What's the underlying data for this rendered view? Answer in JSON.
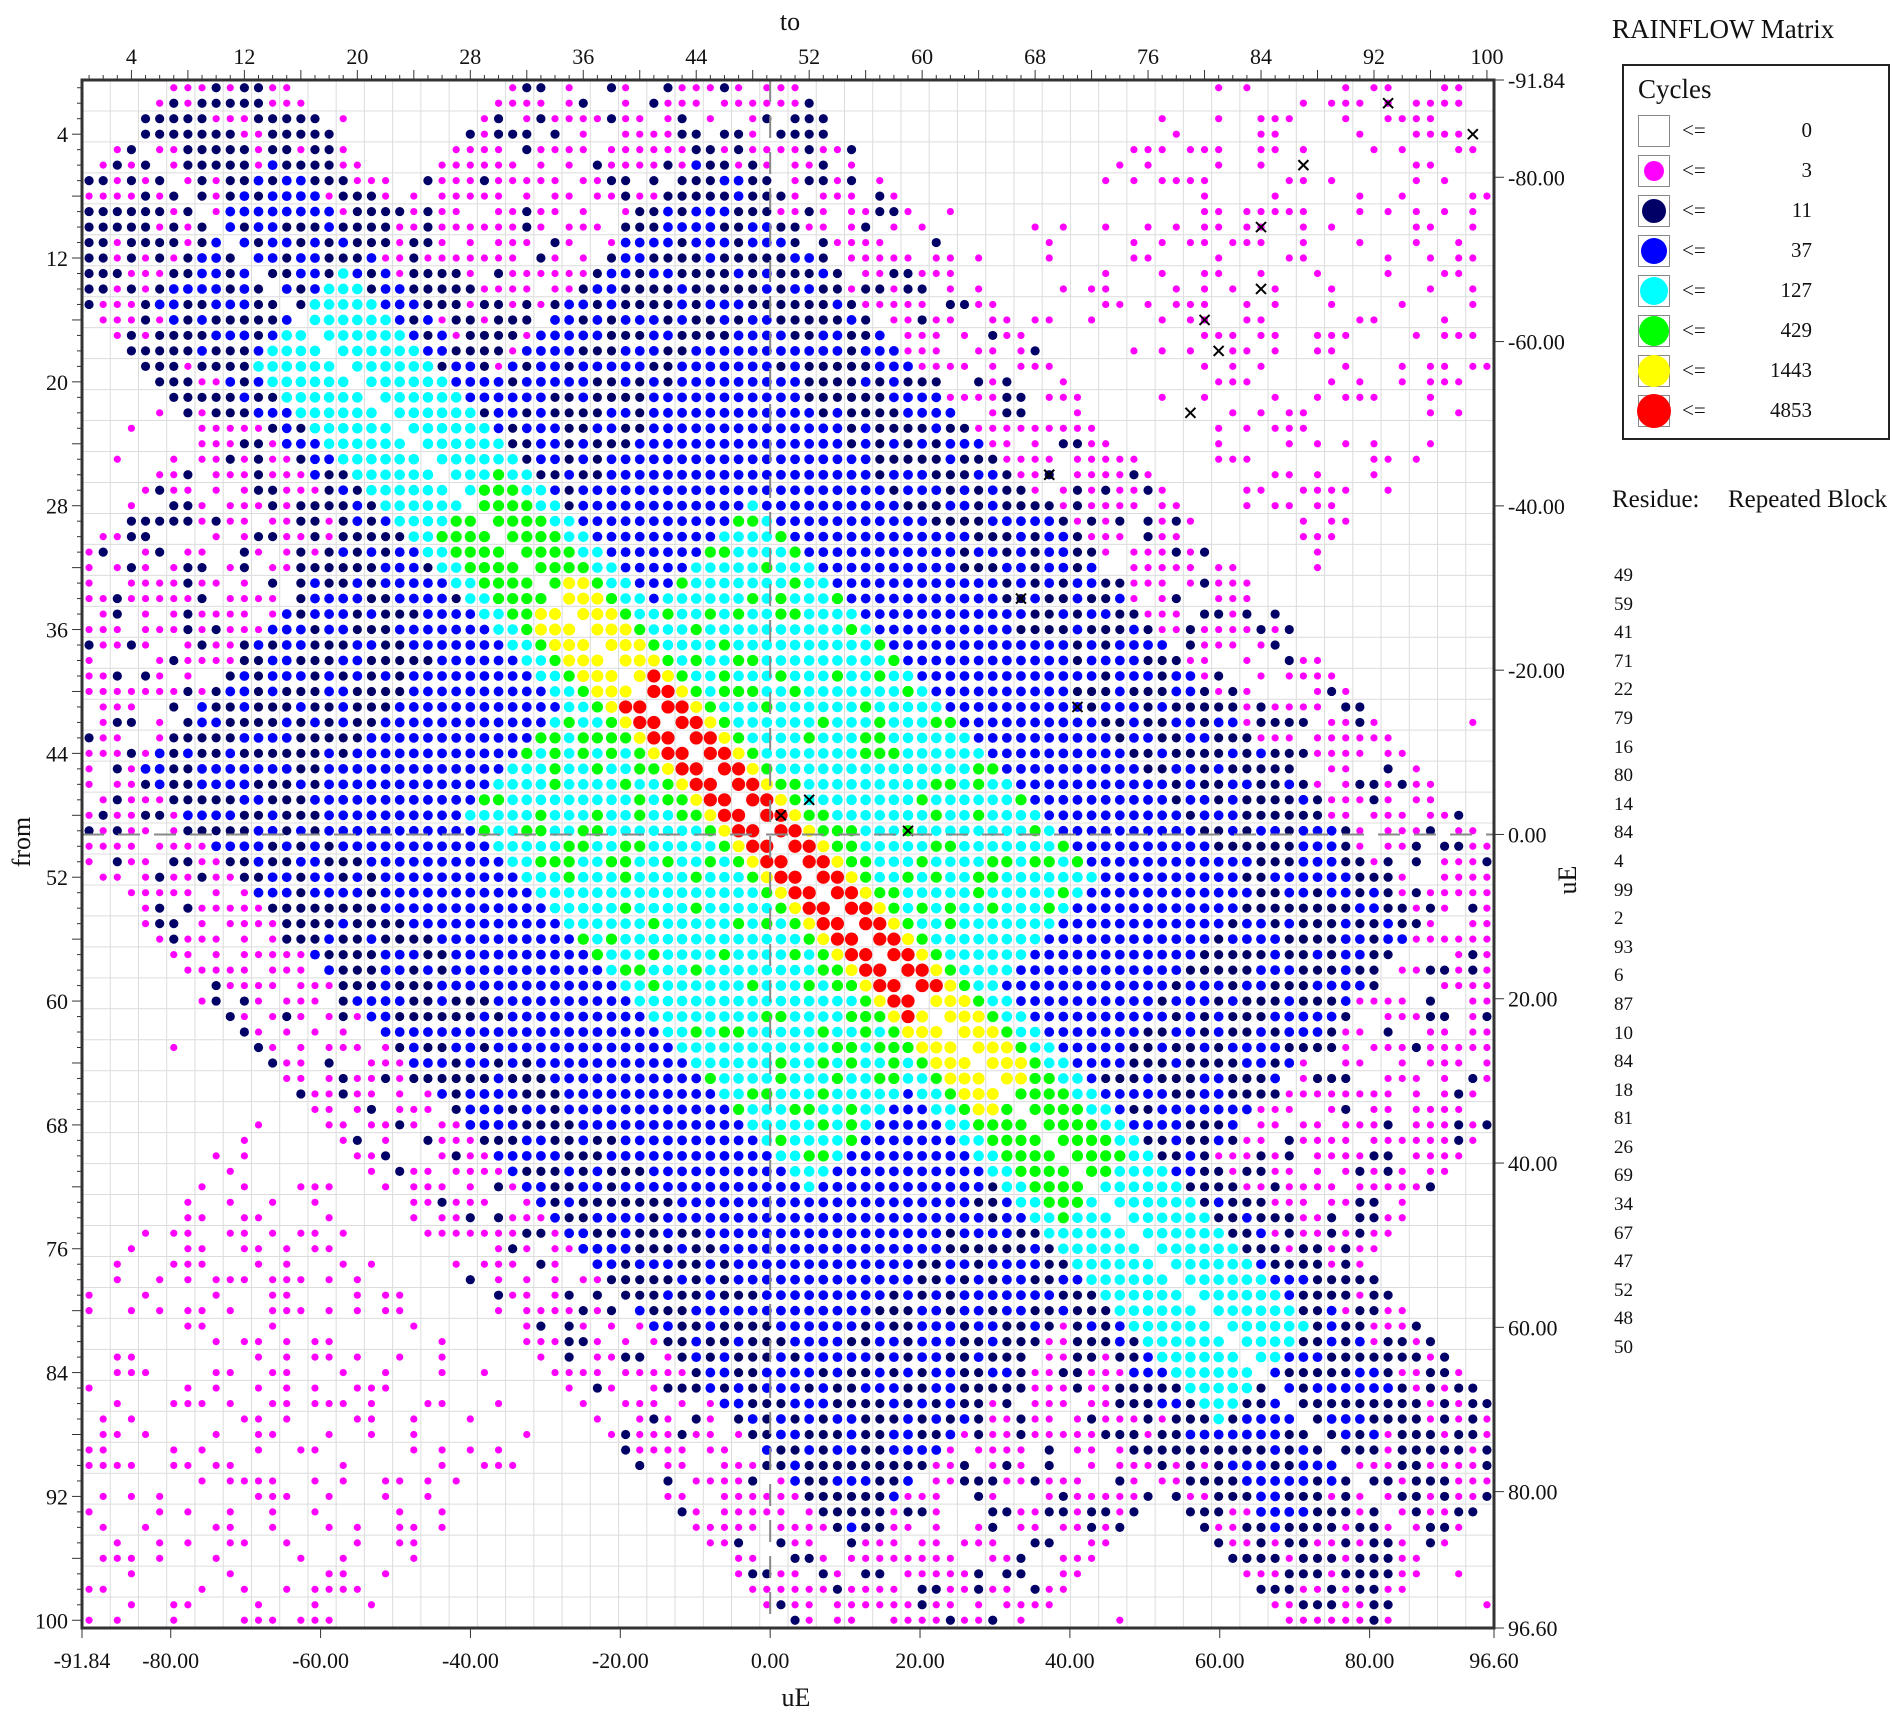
{
  "legend": {
    "title": "RAINFLOW Matrix",
    "header": "Cycles",
    "le_symbol": "<=",
    "items": [
      {
        "value": "0",
        "color": "#ffffff"
      },
      {
        "value": "3",
        "color": "#ff00ff"
      },
      {
        "value": "11",
        "color": "#000066"
      },
      {
        "value": "37",
        "color": "#0000ff"
      },
      {
        "value": "127",
        "color": "#00ffff"
      },
      {
        "value": "429",
        "color": "#00ff00"
      },
      {
        "value": "1443",
        "color": "#ffff00"
      },
      {
        "value": "4853",
        "color": "#ff0000"
      }
    ]
  },
  "residue": {
    "label": "Residue:",
    "block_label": "Repeated Block",
    "values": [
      "49",
      "59",
      "41",
      "71",
      "22",
      "79",
      "16",
      "80",
      "14",
      "84",
      "4",
      "99",
      "2",
      "93",
      "6",
      "87",
      "10",
      "84",
      "18",
      "81",
      "26",
      "69",
      "34",
      "67",
      "47",
      "52",
      "48",
      "50"
    ]
  },
  "chart_data": {
    "type": "heatmap",
    "title": "RAINFLOW Matrix",
    "xlabel_top": "to",
    "xlabel_bottom": "uE",
    "ylabel_left": "from",
    "ylabel_right": "uE",
    "bins": 100,
    "grid": true,
    "top_ticks": [
      "4",
      "12",
      "20",
      "28",
      "36",
      "44",
      "52",
      "60",
      "68",
      "76",
      "84",
      "92",
      "100"
    ],
    "left_ticks": [
      "4",
      "12",
      "20",
      "28",
      "36",
      "44",
      "52",
      "60",
      "68",
      "76",
      "84",
      "92",
      "100"
    ],
    "bottom_ticks": [
      "-91.84",
      "-80.00",
      "-60.00",
      "-40.00",
      "-20.00",
      "0.00",
      "20.00",
      "40.00",
      "60.00",
      "80.00",
      "96.60"
    ],
    "right_ticks": [
      "-91.84",
      "-80.00",
      "-60.00",
      "-40.00",
      "-20.00",
      "0.00",
      "20.00",
      "40.00",
      "60.00",
      "80.00",
      "96.60"
    ],
    "uE_range": [
      -91.84,
      96.6
    ],
    "zero_bin": 49,
    "legend_placement": "right",
    "cycles_thresholds": [
      0,
      3,
      11,
      37,
      127,
      429,
      1443,
      4853
    ],
    "description_of_distribution": "Cycle counts concentrated along the from=to diagonal; highest counts (<=4853) near bins 40-60; broad mid-level region around bins 30-70; sparse low counts toward corners, with residue markers (*) at reversal points."
  }
}
